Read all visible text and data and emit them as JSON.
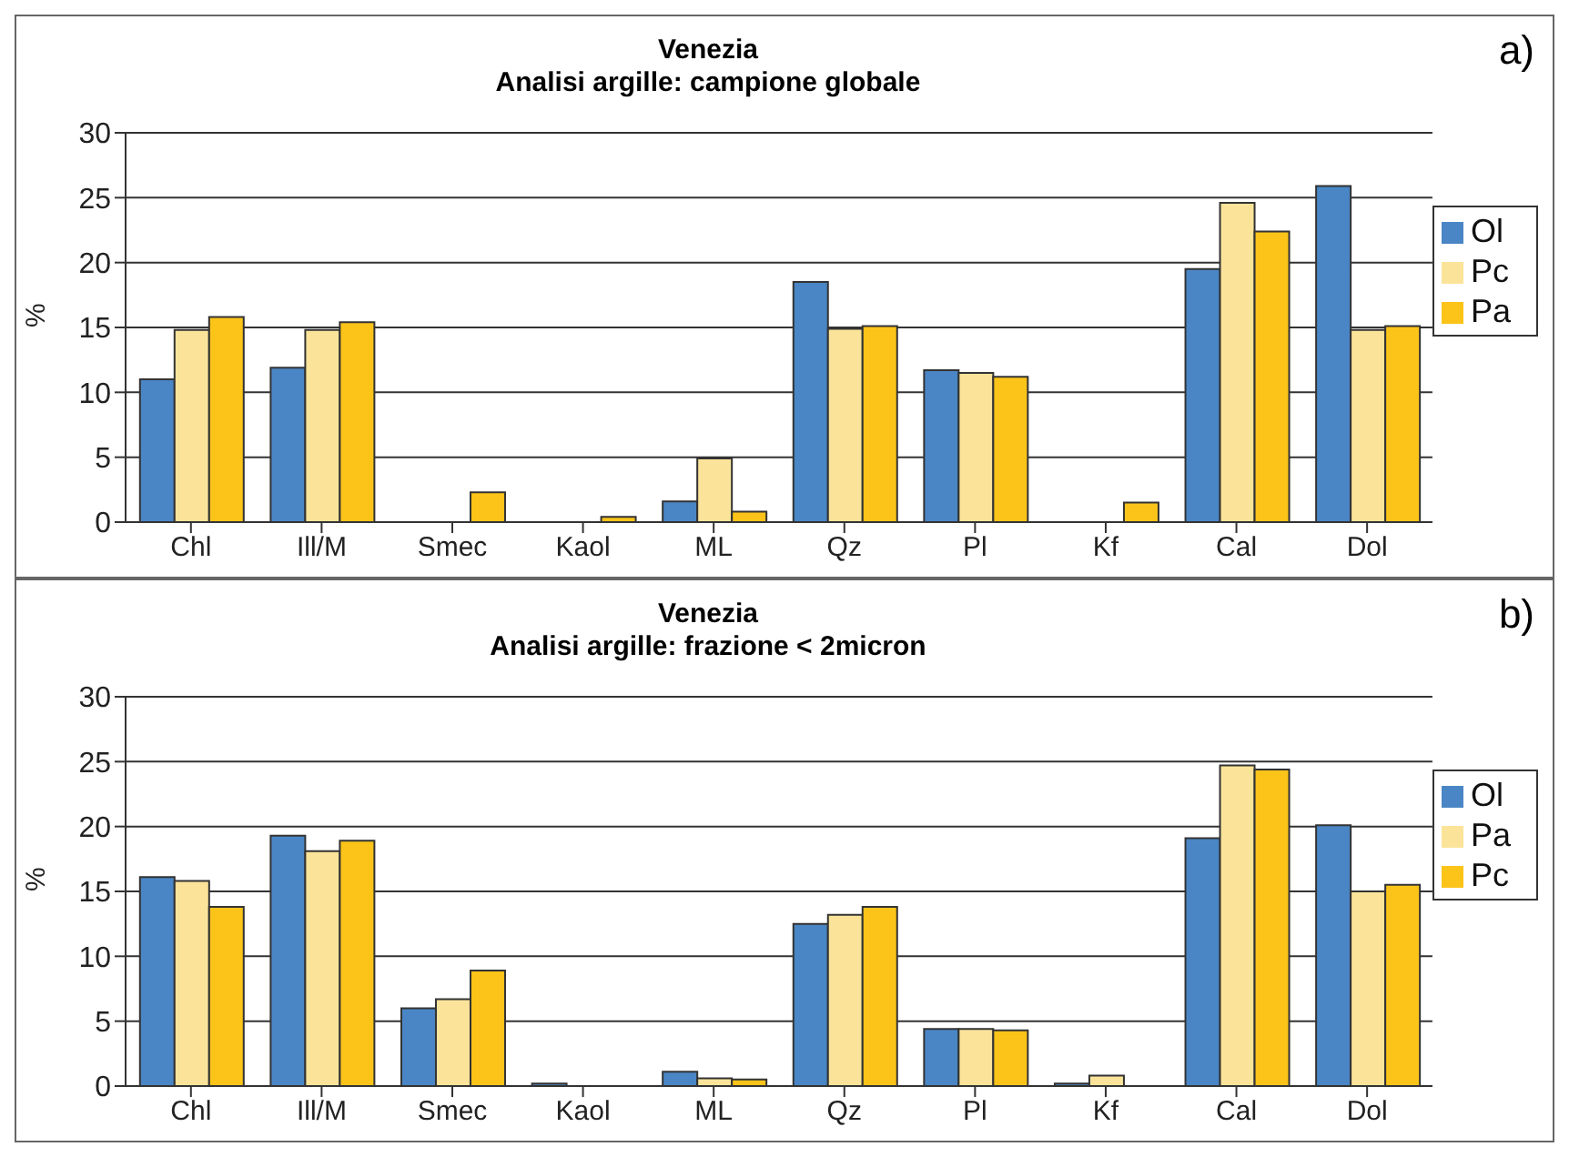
{
  "chart_data": [
    {
      "type": "bar",
      "title": "Venezia",
      "subtitle": "Analisi argille: campione globale",
      "ylabel": "%",
      "annotations": [
        "a)"
      ],
      "categories": [
        "Chl",
        "Ill/M",
        "Smec",
        "Kaol",
        "ML",
        "Qz",
        "Pl",
        "Kf",
        "Cal",
        "Dol"
      ],
      "series": [
        {
          "name": "Ol",
          "color": "#4a86c5",
          "values": [
            11.0,
            11.9,
            0,
            0,
            1.6,
            18.5,
            11.7,
            0,
            19.5,
            25.9
          ]
        },
        {
          "name": "Pc",
          "color": "#fbe49a",
          "values": [
            14.8,
            14.8,
            0,
            0,
            4.9,
            14.9,
            11.5,
            0,
            24.6,
            14.8
          ]
        },
        {
          "name": "Pa",
          "color": "#fcc419",
          "values": [
            15.8,
            15.4,
            2.3,
            0.4,
            0.8,
            15.1,
            11.2,
            1.5,
            22.4,
            15.1
          ]
        }
      ],
      "ylim": [
        0,
        30
      ],
      "yticks": [
        0,
        5,
        10,
        15,
        20,
        25,
        30
      ],
      "grid": "y",
      "legend": "right"
    },
    {
      "type": "bar",
      "title": "Venezia",
      "subtitle": "Analisi argille: frazione < 2micron",
      "ylabel": "%",
      "annotations": [
        "b)"
      ],
      "categories": [
        "Chl",
        "Ill/M",
        "Smec",
        "Kaol",
        "ML",
        "Qz",
        "Pl",
        "Kf",
        "Cal",
        "Dol"
      ],
      "series": [
        {
          "name": "Ol",
          "color": "#4a86c5",
          "values": [
            16.1,
            19.3,
            6.0,
            0.2,
            1.1,
            12.5,
            4.4,
            0.2,
            19.1,
            20.1
          ]
        },
        {
          "name": "Pa",
          "color": "#fbe49a",
          "values": [
            15.8,
            18.1,
            6.7,
            0,
            0.6,
            13.2,
            4.4,
            0.8,
            24.7,
            15.0
          ]
        },
        {
          "name": "Pc",
          "color": "#fcc419",
          "values": [
            13.8,
            18.9,
            8.9,
            0,
            0.5,
            13.8,
            4.3,
            0,
            24.4,
            15.5
          ]
        }
      ],
      "ylim": [
        0,
        30
      ],
      "yticks": [
        0,
        5,
        10,
        15,
        20,
        25,
        30
      ],
      "grid": "y",
      "legend": "right"
    }
  ]
}
